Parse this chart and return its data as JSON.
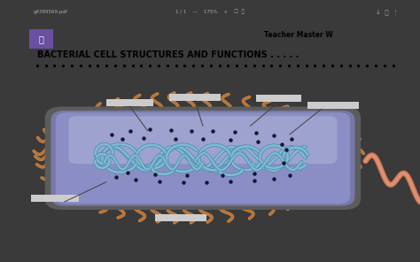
{
  "bg_color": "#3a3a3a",
  "toolbar_color": "#252525",
  "page_bg": "#ffffff",
  "title_text": "BACTERIAL CELL STRUCTURES AND FUNCTIONS . . . . .",
  "subtitle_text": "Teacher Master W",
  "cell_outer_color": "#606060",
  "cell_body_color": "#8a8ec5",
  "cell_body_light": "#b0b4d8",
  "cell_body_dark": "#6a6ea8",
  "dna_fill": "#82bcd4",
  "dna_line": "#5090b0",
  "flagellum_color": "#cc7755",
  "pili_color": "#b87030",
  "pili_fill": "#d49050",
  "dots_color": "#151530",
  "label_box_color": "#cccccc",
  "line_color": "#404040",
  "toolbar_text": "#aaaaaa",
  "icon_color": "#6b4fa0"
}
